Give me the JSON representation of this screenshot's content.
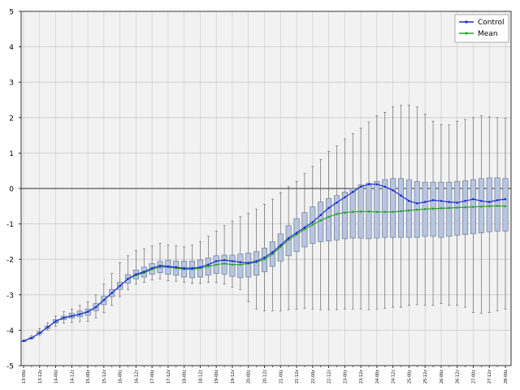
{
  "chart_data": {
    "type": "line",
    "title": "",
    "xlabel": "",
    "ylabel": "",
    "ylim": [
      -5,
      5
    ],
    "yticks": [
      5,
      4,
      3,
      2,
      1,
      0,
      -1,
      -2,
      -3,
      -4,
      -5
    ],
    "grid": true,
    "legend_position": "top-right",
    "x": [
      "13-00z",
      "13-06z",
      "13-12z",
      "13-18z",
      "14-00z",
      "14-06z",
      "14-12z",
      "14-18z",
      "15-00z",
      "15-06z",
      "15-12z",
      "15-18z",
      "16-00z",
      "16-06z",
      "16-12z",
      "16-18z",
      "17-00z",
      "17-06z",
      "17-12z",
      "17-18z",
      "18-00z",
      "18-06z",
      "18-12z",
      "18-18z",
      "19-00z",
      "19-06z",
      "19-12z",
      "19-18z",
      "20-00z",
      "20-06z",
      "20-12z",
      "20-18z",
      "21-00z",
      "21-06z",
      "21-12z",
      "21-18z",
      "22-00z",
      "22-06z",
      "22-12z",
      "22-18z",
      "23-00z",
      "23-06z",
      "23-12z",
      "23-18z",
      "24-00z",
      "24-06z",
      "24-12z",
      "24-18z",
      "25-00z",
      "25-06z",
      "25-12z",
      "25-18z",
      "26-00z",
      "26-06z",
      "26-12z",
      "26-18z",
      "27-00z",
      "27-06z",
      "27-12z",
      "27-18z",
      "28-00z"
    ],
    "xtick_labels": [
      "13-00z",
      "13-12z",
      "14-00z",
      "14-12z",
      "15-00z",
      "15-12z",
      "16-00z",
      "16-12z",
      "17-00z",
      "17-12z",
      "18-00z",
      "18-12z",
      "19-00z",
      "19-12z",
      "20-00z",
      "20-12z",
      "21-00z",
      "21-12z",
      "22-00z",
      "22-12z",
      "23-00z",
      "23-12z",
      "24-00z",
      "24-12z",
      "25-00z",
      "25-12z",
      "26-00z",
      "26-12z",
      "27-00z",
      "27-12z",
      "28-00z"
    ],
    "series": [
      {
        "name": "Control",
        "color": "#1f2bd6",
        "values": [
          -4.3,
          -4.22,
          -4.08,
          -3.92,
          -3.75,
          -3.65,
          -3.6,
          -3.55,
          -3.48,
          -3.35,
          -3.15,
          -2.95,
          -2.75,
          -2.55,
          -2.42,
          -2.35,
          -2.25,
          -2.18,
          -2.2,
          -2.22,
          -2.25,
          -2.25,
          -2.22,
          -2.15,
          -2.05,
          -2.02,
          -2.05,
          -2.08,
          -2.1,
          -2.05,
          -1.95,
          -1.8,
          -1.6,
          -1.4,
          -1.25,
          -1.1,
          -0.95,
          -0.75,
          -0.55,
          -0.4,
          -0.25,
          -0.1,
          0.05,
          0.12,
          0.12,
          0.05,
          -0.05,
          -0.2,
          -0.35,
          -0.42,
          -0.38,
          -0.33,
          -0.35,
          -0.38,
          -0.4,
          -0.35,
          -0.3,
          -0.35,
          -0.38,
          -0.33,
          -0.3
        ]
      },
      {
        "name": "Mean",
        "color": "#2ca02c",
        "values": [
          -4.3,
          -4.22,
          -4.08,
          -3.92,
          -3.75,
          -3.65,
          -3.6,
          -3.55,
          -3.48,
          -3.35,
          -3.15,
          -2.95,
          -2.75,
          -2.55,
          -2.45,
          -2.38,
          -2.28,
          -2.22,
          -2.22,
          -2.25,
          -2.28,
          -2.28,
          -2.25,
          -2.2,
          -2.15,
          -2.12,
          -2.15,
          -2.15,
          -2.12,
          -2.08,
          -2.0,
          -1.85,
          -1.65,
          -1.45,
          -1.3,
          -1.15,
          -1.02,
          -0.9,
          -0.8,
          -0.72,
          -0.68,
          -0.66,
          -0.65,
          -0.65,
          -0.66,
          -0.66,
          -0.66,
          -0.64,
          -0.62,
          -0.6,
          -0.58,
          -0.57,
          -0.56,
          -0.55,
          -0.54,
          -0.53,
          -0.52,
          -0.51,
          -0.5,
          -0.49,
          -0.5
        ]
      }
    ],
    "boxes": {
      "q1": [
        -4.3,
        -4.22,
        -4.1,
        -3.95,
        -3.8,
        -3.7,
        -3.66,
        -3.62,
        -3.58,
        -3.45,
        -3.28,
        -3.05,
        -2.85,
        -2.67,
        -2.55,
        -2.5,
        -2.42,
        -2.38,
        -2.42,
        -2.45,
        -2.5,
        -2.52,
        -2.5,
        -2.45,
        -2.4,
        -2.42,
        -2.48,
        -2.52,
        -2.5,
        -2.45,
        -2.35,
        -2.2,
        -2.05,
        -1.9,
        -1.78,
        -1.65,
        -1.55,
        -1.5,
        -1.48,
        -1.45,
        -1.42,
        -1.4,
        -1.4,
        -1.42,
        -1.4,
        -1.38,
        -1.38,
        -1.38,
        -1.38,
        -1.38,
        -1.35,
        -1.35,
        -1.38,
        -1.35,
        -1.32,
        -1.3,
        -1.28,
        -1.25,
        -1.22,
        -1.2,
        -1.2
      ],
      "q3": [
        -4.3,
        -4.2,
        -4.04,
        -3.88,
        -3.7,
        -3.6,
        -3.52,
        -3.46,
        -3.4,
        -3.25,
        -3.04,
        -2.85,
        -2.65,
        -2.43,
        -2.3,
        -2.22,
        -2.12,
        -2.06,
        -2.03,
        -2.05,
        -2.05,
        -2.05,
        -2.02,
        -1.96,
        -1.9,
        -1.88,
        -1.88,
        -1.85,
        -1.82,
        -1.78,
        -1.68,
        -1.5,
        -1.28,
        -1.05,
        -0.85,
        -0.68,
        -0.52,
        -0.38,
        -0.28,
        -0.2,
        -0.1,
        0.0,
        0.1,
        0.15,
        0.2,
        0.25,
        0.28,
        0.28,
        0.25,
        0.2,
        0.18,
        0.18,
        0.18,
        0.18,
        0.2,
        0.22,
        0.25,
        0.28,
        0.3,
        0.3,
        0.28
      ],
      "lo": [
        -4.3,
        -4.25,
        -4.15,
        -4.0,
        -3.88,
        -3.8,
        -3.78,
        -3.76,
        -3.75,
        -3.65,
        -3.5,
        -3.3,
        -3.05,
        -2.85,
        -2.7,
        -2.65,
        -2.58,
        -2.55,
        -2.6,
        -2.62,
        -2.65,
        -2.68,
        -2.68,
        -2.65,
        -2.65,
        -2.7,
        -2.78,
        -2.85,
        -3.2,
        -3.4,
        -3.45,
        -3.45,
        -3.45,
        -3.42,
        -3.4,
        -3.38,
        -3.4,
        -3.42,
        -3.42,
        -3.42,
        -3.4,
        -3.4,
        -3.4,
        -3.42,
        -3.4,
        -3.38,
        -3.35,
        -3.35,
        -3.3,
        -3.28,
        -3.3,
        -3.3,
        -3.25,
        -3.3,
        -3.3,
        -3.35,
        -3.5,
        -3.52,
        -3.5,
        -3.45,
        -3.4
      ],
      "hi": [
        -4.3,
        -4.15,
        -3.95,
        -3.8,
        -3.6,
        -3.48,
        -3.4,
        -3.3,
        -3.2,
        -3.0,
        -2.7,
        -2.4,
        -2.1,
        -1.9,
        -1.75,
        -1.7,
        -1.62,
        -1.55,
        -1.6,
        -1.62,
        -1.65,
        -1.6,
        -1.5,
        -1.35,
        -1.2,
        -1.05,
        -0.92,
        -0.8,
        -0.7,
        -0.58,
        -0.45,
        -0.3,
        -0.12,
        0.05,
        0.2,
        0.42,
        0.62,
        0.82,
        1.05,
        1.2,
        1.4,
        1.55,
        1.7,
        1.88,
        2.05,
        2.15,
        2.3,
        2.35,
        2.35,
        2.3,
        2.1,
        1.9,
        1.8,
        1.8,
        1.9,
        1.95,
        2.0,
        2.05,
        2.02,
        2.0,
        1.98
      ]
    }
  },
  "legend": {
    "items": [
      {
        "label": "Control",
        "color": "#1f2bd6"
      },
      {
        "label": "Mean",
        "color": "#2ca02c"
      }
    ]
  },
  "colors": {
    "box_fill": "#b7c6de",
    "box_stroke": "#5a6f92",
    "whisker": "#555555",
    "grid": "#c8c8c8",
    "zero_line": "#555555",
    "plot_bg": "#f2f2f2"
  }
}
